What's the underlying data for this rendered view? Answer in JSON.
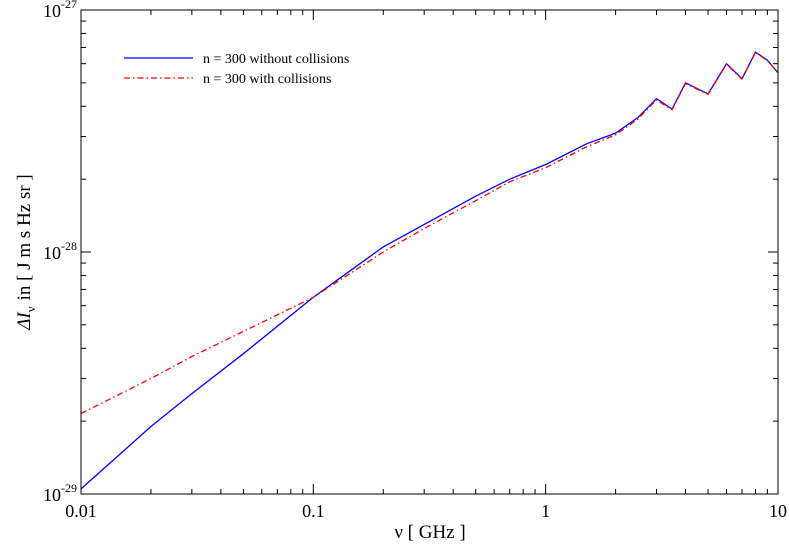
{
  "chart_data": {
    "type": "line",
    "title": "",
    "xlabel": "ν [ GHz ]",
    "ylabel_parts": {
      "prefix": "ΔI",
      "sub": "ν",
      "text": "in [ J m s Hz sr ]"
    },
    "xscale": "log",
    "yscale": "log",
    "xlim": [
      0.01,
      10
    ],
    "ylim": [
      1e-29,
      1e-27
    ],
    "x_tick_labels": [
      "0.01",
      "0.1",
      "1",
      "10"
    ],
    "y_tick_labels": [
      {
        "base": "10",
        "exp": "-29"
      },
      {
        "base": "10",
        "exp": "-28"
      },
      {
        "base": "10",
        "exp": "-27"
      }
    ],
    "legend_position": "top-left",
    "series": [
      {
        "name": "n = 300 without collisions",
        "color": "#0000ff",
        "style": "solid",
        "x": [
          0.01,
          0.02,
          0.03,
          0.05,
          0.1,
          0.2,
          0.3,
          0.5,
          0.7,
          1.0,
          1.5,
          2.0,
          2.5,
          3.0,
          3.5,
          4.0,
          5.0,
          6.0,
          7.0,
          8.0,
          9.0,
          10.0
        ],
        "y": [
          1.05e-29,
          1.9e-29,
          2.6e-29,
          3.8e-29,
          6.5e-29,
          1.05e-28,
          1.3e-28,
          1.7e-28,
          2e-28,
          2.3e-28,
          2.8e-28,
          3.1e-28,
          3.6e-28,
          4.3e-28,
          3.9e-28,
          5e-28,
          4.5e-28,
          6e-28,
          5.2e-28,
          6.7e-28,
          6.2e-28,
          5.5e-28
        ]
      },
      {
        "name": "n = 300 with collisions",
        "color": "#ff0000",
        "style": "dash-dot",
        "x": [
          0.01,
          0.02,
          0.03,
          0.05,
          0.1,
          0.2,
          0.3,
          0.5,
          0.7,
          1.0,
          1.5,
          2.0,
          2.5,
          3.0,
          3.5,
          4.0,
          5.0,
          6.0,
          7.0,
          8.0,
          9.0,
          10.0
        ],
        "y": [
          2.15e-29,
          3e-29,
          3.7e-29,
          4.7e-29,
          6.5e-29,
          1e-28,
          1.25e-28,
          1.63e-28,
          1.95e-28,
          2.23e-28,
          2.72e-28,
          3.05e-28,
          3.55e-28,
          4.25e-28,
          3.87e-28,
          4.97e-28,
          4.48e-28,
          5.97e-28,
          5.18e-28,
          6.68e-28,
          6.18e-28,
          5.5e-28
        ]
      }
    ]
  }
}
